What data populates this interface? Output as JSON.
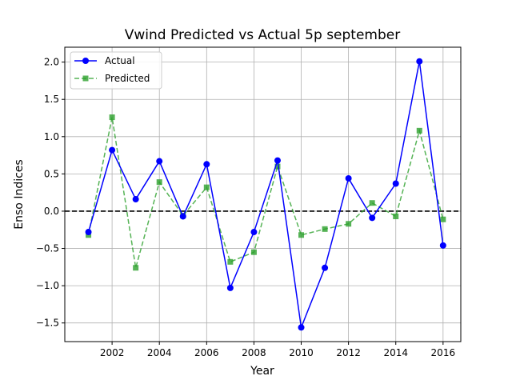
{
  "chart_data": {
    "type": "line",
    "title": "Vwind Predicted vs Actual 5p september",
    "xlabel": "Year",
    "ylabel": "Enso Indices",
    "x": [
      2001,
      2002,
      2003,
      2004,
      2005,
      2006,
      2007,
      2008,
      2009,
      2010,
      2011,
      2012,
      2013,
      2014,
      2015,
      2016
    ],
    "xlim": [
      2000.0,
      2016.75
    ],
    "ylim": [
      -1.75,
      2.2
    ],
    "xticks": [
      2002,
      2004,
      2006,
      2008,
      2010,
      2012,
      2014,
      2016
    ],
    "xtick_labels": [
      "2002",
      "2004",
      "2006",
      "2008",
      "2010",
      "2012",
      "2014",
      "2016"
    ],
    "yticks": [
      -1.5,
      -1.0,
      -0.5,
      0.0,
      0.5,
      1.0,
      1.5,
      2.0
    ],
    "ytick_labels": [
      "−1.5",
      "−1.0",
      "−0.5",
      "0.0",
      "0.5",
      "1.0",
      "1.5",
      "2.0"
    ],
    "grid": true,
    "legend_position": "top-left",
    "reference_line": {
      "y": 0.0,
      "style": "dashed",
      "color": "#000000"
    },
    "series": [
      {
        "name": "Actual",
        "color": "#0000ff",
        "line_style": "solid",
        "marker": "circle",
        "values": [
          -0.28,
          0.82,
          0.16,
          0.67,
          -0.07,
          0.63,
          -1.03,
          -0.28,
          0.68,
          -1.56,
          -0.76,
          0.44,
          -0.09,
          0.37,
          2.01,
          -0.46
        ]
      },
      {
        "name": "Predicted",
        "color": "#2ca02c",
        "line_style": "dashed",
        "marker": "square",
        "values": [
          -0.32,
          1.26,
          -0.76,
          0.39,
          -0.06,
          0.32,
          -0.68,
          -0.55,
          0.6,
          -0.32,
          -0.24,
          -0.17,
          0.11,
          -0.07,
          1.08,
          -0.11
        ]
      }
    ]
  }
}
